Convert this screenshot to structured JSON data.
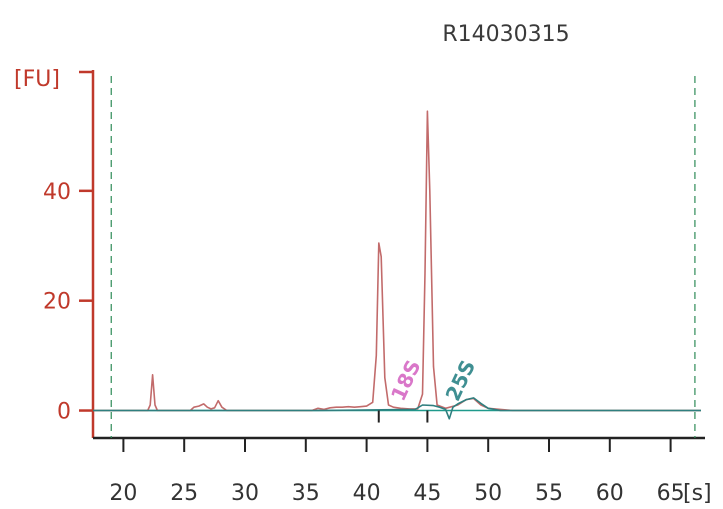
{
  "chart_data": {
    "type": "line",
    "title": "R14030315",
    "ylabel": "[FU]",
    "xlabel": "[s]",
    "xlim": [
      17.5,
      67.5
    ],
    "ylim": [
      -5,
      62
    ],
    "x_ticks": [
      20,
      25,
      30,
      35,
      40,
      45,
      50,
      55,
      60,
      65
    ],
    "y_ticks": [
      0,
      20,
      40
    ],
    "markers": [
      19,
      67
    ],
    "annotations": [
      {
        "text": "18S",
        "x": 43,
        "color": "#d977c9"
      },
      {
        "text": "25S",
        "x": 47.5,
        "color": "#3f8f92"
      }
    ],
    "series": [
      {
        "color": "#c26b6b",
        "points": [
          [
            17.5,
            0
          ],
          [
            22.0,
            0
          ],
          [
            22.2,
            1
          ],
          [
            22.4,
            6.5
          ],
          [
            22.6,
            1
          ],
          [
            22.8,
            0
          ],
          [
            25.5,
            0
          ],
          [
            25.8,
            0.6
          ],
          [
            26.2,
            0.8
          ],
          [
            26.6,
            1.2
          ],
          [
            26.9,
            0.6
          ],
          [
            27.2,
            0.3
          ],
          [
            27.5,
            0.5
          ],
          [
            27.8,
            1.8
          ],
          [
            28.1,
            0.6
          ],
          [
            28.5,
            0
          ],
          [
            35.5,
            0
          ],
          [
            36.0,
            0.4
          ],
          [
            36.5,
            0.2
          ],
          [
            37.0,
            0.5
          ],
          [
            37.5,
            0.6
          ],
          [
            38.0,
            0.6
          ],
          [
            38.5,
            0.7
          ],
          [
            39.0,
            0.6
          ],
          [
            39.5,
            0.7
          ],
          [
            40.0,
            0.8
          ],
          [
            40.5,
            1.5
          ],
          [
            40.8,
            10
          ],
          [
            41.0,
            30.5
          ],
          [
            41.2,
            28
          ],
          [
            41.5,
            6
          ],
          [
            41.8,
            1
          ],
          [
            42.2,
            0.6
          ],
          [
            42.8,
            0.4
          ],
          [
            43.5,
            0.3
          ],
          [
            44.2,
            0.3
          ],
          [
            44.6,
            3
          ],
          [
            44.8,
            25
          ],
          [
            45.0,
            54.5
          ],
          [
            45.2,
            40
          ],
          [
            45.5,
            8
          ],
          [
            45.8,
            1
          ],
          [
            46.5,
            0.4
          ],
          [
            47.5,
            1
          ],
          [
            48.2,
            2
          ],
          [
            48.8,
            2.2
          ],
          [
            49.4,
            1
          ],
          [
            50.0,
            0.4
          ],
          [
            51.0,
            0.2
          ],
          [
            52.0,
            0
          ],
          [
            67.5,
            0
          ]
        ]
      },
      {
        "color": "#2f7f7f",
        "points": [
          [
            17.5,
            0
          ],
          [
            36.0,
            0
          ],
          [
            44.0,
            0.2
          ],
          [
            44.6,
            1
          ],
          [
            45.5,
            0.9
          ],
          [
            46.0,
            0.6
          ],
          [
            46.5,
            0.2
          ],
          [
            46.8,
            -1.5
          ],
          [
            47.1,
            0.6
          ],
          [
            47.5,
            1.2
          ],
          [
            48.2,
            2
          ],
          [
            48.8,
            2.3
          ],
          [
            49.4,
            1.3
          ],
          [
            50.0,
            0.4
          ],
          [
            51.0,
            0
          ],
          [
            67.5,
            0
          ]
        ]
      }
    ]
  },
  "colors": {
    "axis_y": "#c0392b",
    "axis_x": "#222222",
    "baseline": "#1f9a8c",
    "marker": "#2e8b57"
  }
}
